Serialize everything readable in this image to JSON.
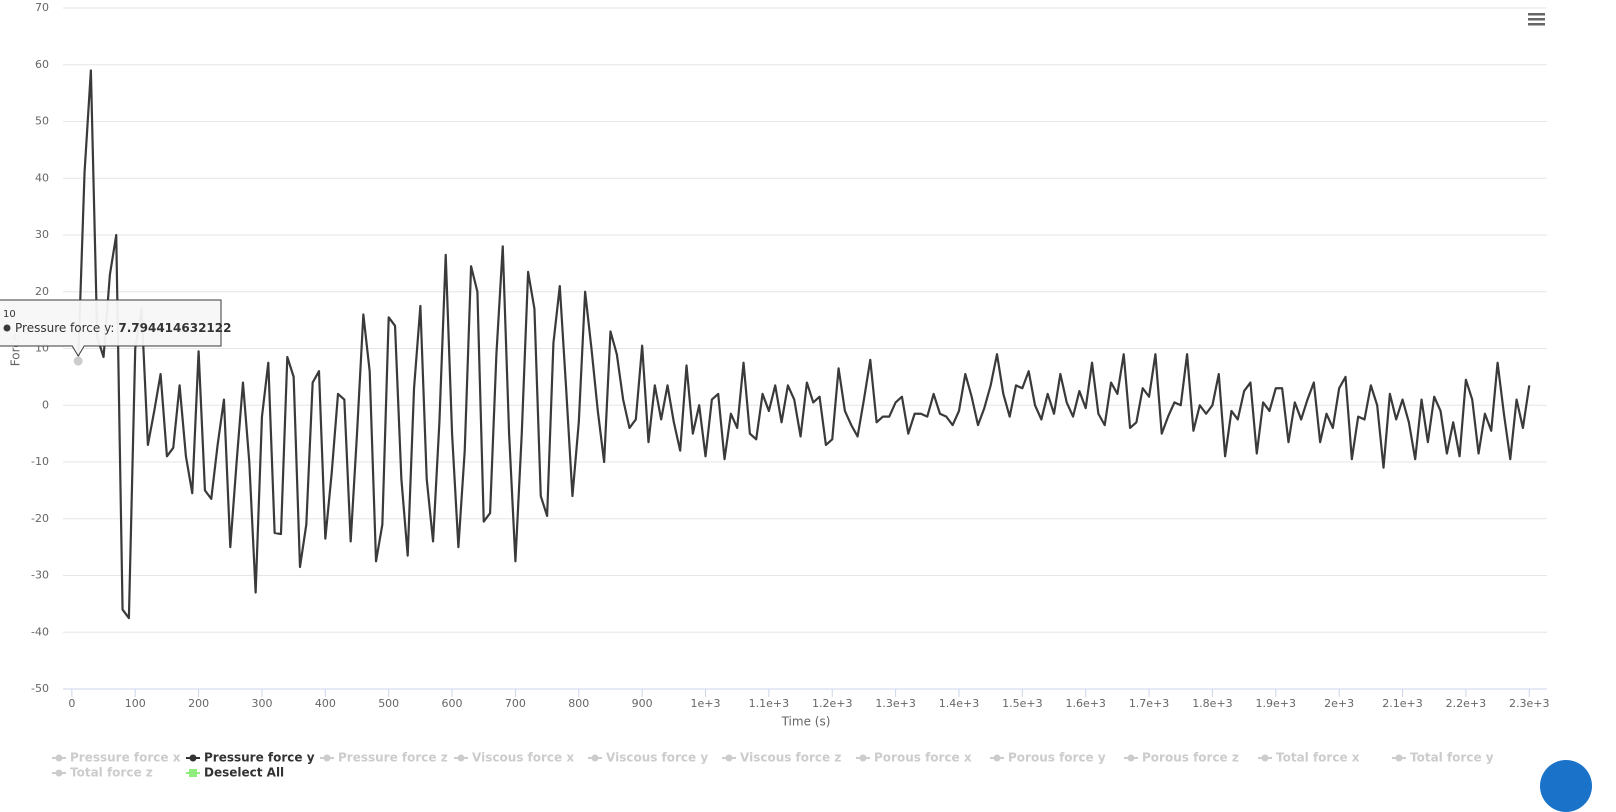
{
  "chart_data": {
    "type": "line",
    "x_label": "Time (s)",
    "y_label": "Force",
    "x": [
      10,
      20,
      30,
      40,
      50,
      60,
      70,
      80,
      90,
      100,
      110,
      120,
      130,
      140,
      150,
      160,
      170,
      180,
      190,
      200,
      210,
      220,
      230,
      240,
      250,
      260,
      270,
      280,
      290,
      300,
      310,
      320,
      330,
      340,
      350,
      360,
      370,
      380,
      390,
      400,
      410,
      420,
      430,
      440,
      450,
      460,
      470,
      480,
      490,
      500,
      510,
      520,
      530,
      540,
      550,
      560,
      570,
      580,
      590,
      600,
      610,
      620,
      630,
      640,
      650,
      660,
      670,
      680,
      690,
      700,
      710,
      720,
      730,
      740,
      750,
      760,
      770,
      780,
      790,
      800,
      810,
      820,
      830,
      840,
      850,
      860,
      870,
      880,
      890,
      900,
      910,
      920,
      930,
      940,
      950,
      960,
      970,
      980,
      990,
      1000,
      1010,
      1020,
      1030,
      1040,
      1050,
      1060,
      1070,
      1080,
      1090,
      1100,
      1110,
      1120,
      1130,
      1140,
      1150,
      1160,
      1170,
      1180,
      1190,
      1200,
      1210,
      1220,
      1230,
      1240,
      1250,
      1260,
      1270,
      1280,
      1290,
      1300,
      1310,
      1320,
      1330,
      1340,
      1350,
      1360,
      1370,
      1380,
      1390,
      1400,
      1410,
      1420,
      1430,
      1440,
      1450,
      1460,
      1470,
      1480,
      1490,
      1500,
      1510,
      1520,
      1530,
      1540,
      1550,
      1560,
      1570,
      1580,
      1590,
      1600,
      1610,
      1620,
      1630,
      1640,
      1650,
      1660,
      1670,
      1680,
      1690,
      1700,
      1710,
      1720,
      1730,
      1740,
      1750,
      1760,
      1770,
      1780,
      1790,
      1800,
      1810,
      1820,
      1830,
      1840,
      1850,
      1860,
      1870,
      1880,
      1890,
      1900,
      1910,
      1920,
      1930,
      1940,
      1950,
      1960,
      1970,
      1980,
      1990,
      2000,
      2010,
      2020,
      2030,
      2040,
      2050,
      2060,
      2070,
      2080,
      2090,
      2100,
      2110,
      2120,
      2130,
      2140,
      2150,
      2160,
      2170,
      2180,
      2190,
      2200,
      2210,
      2220,
      2230,
      2240,
      2250,
      2260,
      2270,
      2280,
      2290,
      2300
    ],
    "series": [
      {
        "name": "Pressure force y",
        "color": "#3a3a3a",
        "values": [
          7.794414632122,
          41,
          59,
          12,
          8.5,
          23,
          30,
          -36,
          -37.5,
          10,
          17,
          -7,
          -1,
          5.5,
          -9,
          -7.5,
          3.5,
          -9,
          -15.5,
          9.5,
          -15,
          -16.5,
          -7,
          1,
          -25,
          -10,
          4,
          -10,
          -33,
          -2,
          7.5,
          -22.5,
          -22.7,
          8.5,
          5,
          -28.5,
          -21,
          4,
          6,
          -23.5,
          -12,
          2,
          1,
          -24,
          -5,
          16,
          6,
          -27.5,
          -21,
          15.5,
          14,
          -13,
          -26.5,
          3,
          17.5,
          -13,
          -24,
          -3,
          26.5,
          -5,
          -25,
          -8,
          24.5,
          20,
          -20.5,
          -19,
          9,
          28,
          -5,
          -27.5,
          -5,
          23.5,
          17,
          -16,
          -19.5,
          11,
          21,
          3,
          -16,
          -3,
          20,
          10,
          -1,
          -10,
          13,
          9,
          1,
          -4,
          -2.5,
          10.5,
          -6.5,
          3.5,
          -2.5,
          3.5,
          -3,
          -8,
          7,
          -5,
          0,
          -9,
          1,
          2,
          -9.5,
          -1.5,
          -4,
          7.5,
          -5,
          -6,
          2,
          -1,
          3.5,
          -3,
          3.5,
          1,
          -5.5,
          4,
          0.5,
          1.5,
          -7,
          -6,
          6.5,
          -1,
          -3.5,
          -5.5,
          1,
          8,
          -3,
          -2,
          -2,
          0.5,
          1.5,
          -5,
          -1.5,
          -1.5,
          -2,
          2,
          -1.5,
          -2,
          -3.5,
          -1,
          5.5,
          1.5,
          -3.5,
          -0.5,
          3.5,
          9,
          2,
          -2,
          3.5,
          3,
          6,
          0,
          -2.5,
          2,
          -1.5,
          5.5,
          0.5,
          -2,
          2.5,
          -0.5,
          7.5,
          -1.5,
          -3.5,
          4,
          2,
          9,
          -4,
          -3,
          3,
          1.5,
          9,
          -5,
          -2,
          0.5,
          0,
          9,
          -4.5,
          0,
          -1.5,
          0,
          5.5,
          -9,
          -1,
          -2.5,
          2.5,
          4,
          -8.5,
          0.5,
          -1,
          3,
          3,
          -6.5,
          0.5,
          -2.5,
          1,
          4,
          -6.5,
          -1.5,
          -4,
          3,
          5,
          -9.5,
          -2,
          -2.5,
          3.5,
          0,
          -11,
          2,
          -2.5,
          1,
          -3,
          -9.5,
          1,
          -6.5,
          1.5,
          -1,
          -8.5,
          -3,
          -9,
          4.5,
          1,
          -8.5,
          -1.5,
          -4.5,
          7.5,
          -1.5,
          -9.5,
          1,
          -4,
          3.5
        ]
      }
    ],
    "xlim": [
      -14,
      2328
    ],
    "ylim": [
      -50,
      70
    ],
    "xticks": [
      0,
      100,
      200,
      300,
      400,
      500,
      600,
      700,
      800,
      900,
      {
        "value": 1000,
        "label": "1e+3"
      },
      {
        "value": 1100,
        "label": "1.1e+3"
      },
      {
        "value": 1200,
        "label": "1.2e+3"
      },
      {
        "value": 1300,
        "label": "1.3e+3"
      },
      {
        "value": 1400,
        "label": "1.4e+3"
      },
      {
        "value": 1500,
        "label": "1.5e+3"
      },
      {
        "value": 1600,
        "label": "1.6e+3"
      },
      {
        "value": 1700,
        "label": "1.7e+3"
      },
      {
        "value": 1800,
        "label": "1.8e+3"
      },
      {
        "value": 1900,
        "label": "1.9e+3"
      },
      {
        "value": 2000,
        "label": "2e+3"
      },
      {
        "value": 2100,
        "label": "2.1e+3"
      },
      {
        "value": 2200,
        "label": "2.2e+3"
      },
      {
        "value": 2300,
        "label": "2.3e+3"
      }
    ],
    "yticks": [
      -50,
      -40,
      -30,
      -20,
      -10,
      0,
      10,
      20,
      30,
      40,
      50,
      60,
      70
    ],
    "grid": true,
    "tooltip": {
      "series_label": "Pressure force y:"
    },
    "legend": {
      "active_color": "#333333",
      "inactive_color": "#cccccc",
      "deselect_color": "#90ed7d",
      "items": [
        {
          "name": "Pressure force x",
          "active": false
        },
        {
          "name": "Pressure force y",
          "active": true
        },
        {
          "name": "Pressure force z",
          "active": false
        },
        {
          "name": "Viscous force x",
          "active": false
        },
        {
          "name": "Viscous force y",
          "active": false
        },
        {
          "name": "Viscous force z",
          "active": false
        },
        {
          "name": "Porous force x",
          "active": false
        },
        {
          "name": "Porous force y",
          "active": false
        },
        {
          "name": "Porous force z",
          "active": false
        },
        {
          "name": "Total force x",
          "active": false
        },
        {
          "name": "Total force y",
          "active": false
        },
        {
          "name": "Total force z",
          "active": false
        }
      ],
      "deselect_label": "Deselect All"
    }
  }
}
